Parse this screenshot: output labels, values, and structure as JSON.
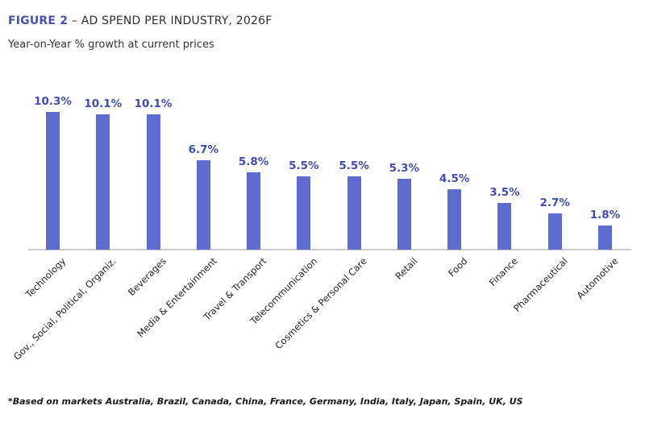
{
  "header": {
    "figure_label": "FIGURE 2",
    "title_rest": " – AD SPEND PER INDUSTRY, 2026F",
    "subtitle": "Year-on-Year % growth at current prices"
  },
  "chart_data": {
    "type": "bar",
    "title": "AD SPEND PER INDUSTRY, 2026F",
    "subtitle": "Year-on-Year % growth at current prices",
    "categories": [
      "Technology",
      "Gov., Social, Political, Organiz.",
      "Beverages",
      "Media & Entertainment",
      "Travel & Transport",
      "Telecommunication",
      "Cosmetics & Personal Care",
      "Retail",
      "Food",
      "Finance",
      "Pharmaceutical",
      "Automotive"
    ],
    "values": [
      10.3,
      10.1,
      10.1,
      6.7,
      5.8,
      5.5,
      5.5,
      5.3,
      4.5,
      3.5,
      2.7,
      1.8
    ],
    "value_labels": [
      "10.3%",
      "10.1%",
      "10.1%",
      "6.7%",
      "5.8%",
      "5.5%",
      "5.5%",
      "5.3%",
      "4.5%",
      "3.5%",
      "2.7%",
      "1.8%"
    ],
    "xlabel": "",
    "ylabel": "Year-on-Year % growth at current prices",
    "ylim": [
      0,
      12
    ],
    "grid": false,
    "legend_position": "none",
    "x_tick_rotation_deg": 45,
    "colors": {
      "bar": "#5d6cce",
      "value_label": "#3f4cb5",
      "figure_label": "#4550b2",
      "title_text": "#2e2e2e",
      "axis_line": "#cccccc",
      "category_label": "#222222"
    }
  },
  "footnote": "*Based on markets Australia, Brazil, Canada, China, France, Germany, India, Italy, Japan, Spain, UK, US"
}
